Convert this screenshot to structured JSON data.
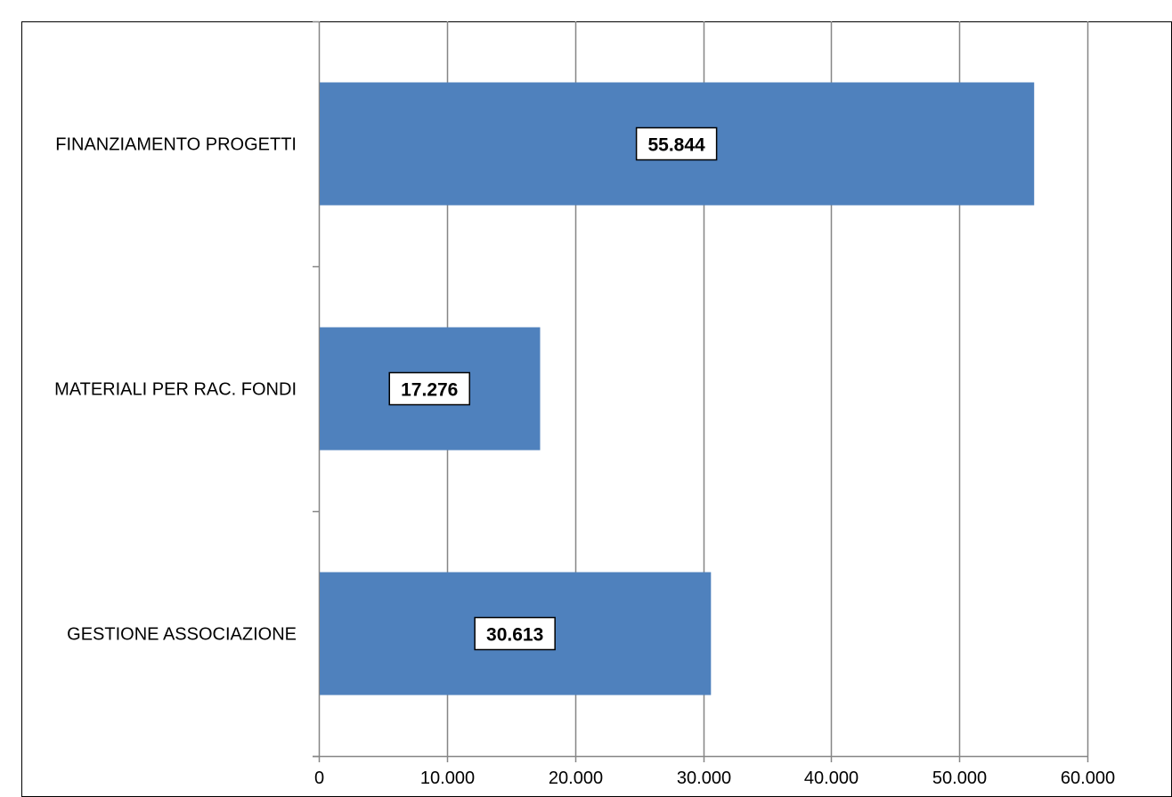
{
  "chart_data": {
    "type": "bar",
    "orientation": "horizontal",
    "categories": [
      "FINANZIAMENTO PROGETTI",
      "MATERIALI PER RAC. FONDI",
      "GESTIONE ASSOCIAZIONE"
    ],
    "values": [
      55844,
      17276,
      30613
    ],
    "data_labels": [
      "55.844",
      "17.276",
      "30.613"
    ],
    "xlim": [
      0,
      60000
    ],
    "x_ticks": [
      0,
      10000,
      20000,
      30000,
      40000,
      50000,
      60000
    ],
    "x_tick_labels": [
      "0",
      "10.000",
      "20.000",
      "30.000",
      "40.000",
      "50.000",
      "60.000"
    ],
    "title": "",
    "xlabel": "",
    "ylabel": "",
    "grid": "vertical",
    "legend": "none",
    "bar_color": "#4F81BD",
    "grid_color": "#868686"
  }
}
